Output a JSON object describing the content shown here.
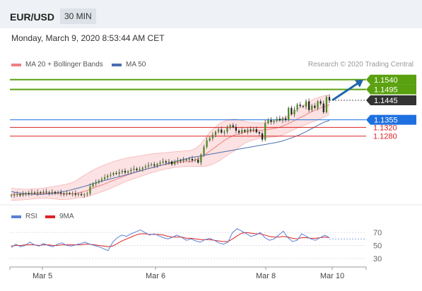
{
  "header": {
    "symbol": "EUR/USD",
    "timeframe": "30 MIN"
  },
  "datetime": "Monday, March 9, 2020 8:53:44 AM CET",
  "legend": {
    "ma_boll": {
      "label": "MA 20 + Bollinger Bands",
      "color": "#f08080"
    },
    "ma50": {
      "label": "MA 50",
      "color": "#4a6fb0"
    },
    "rsi": {
      "label": "RSI",
      "color": "#5b7fd4"
    },
    "ma9": {
      "label": "9MA",
      "color": "#dd2222"
    }
  },
  "credit": "Research © 2020 Trading Central",
  "chart_data": {
    "type": "candlestick",
    "symbol": "EUR/USD",
    "interval": "30 MIN",
    "ylim": [
      1.097,
      1.1575
    ],
    "x_ticks": [
      "Mar 5",
      "Mar 6",
      "Mar 8",
      "Mar 10"
    ],
    "levels": [
      {
        "label": "1.1540",
        "value": 1.154,
        "color": "#5aa10f",
        "kind": "resistance",
        "labelstyle": "box"
      },
      {
        "label": "1.1495",
        "value": 1.1495,
        "color": "#5aa10f",
        "kind": "resistance",
        "labelstyle": "box"
      },
      {
        "label": "1.1445",
        "value": 1.1445,
        "color": "#333333",
        "kind": "last",
        "labelstyle": "box"
      },
      {
        "label": "1.1355",
        "value": 1.1355,
        "color": "#1e70e0",
        "kind": "pivot",
        "labelstyle": "box"
      },
      {
        "label": "1.1320",
        "value": 1.132,
        "color": "#dd2222",
        "kind": "support",
        "labelstyle": "text"
      },
      {
        "label": "1.1280",
        "value": 1.128,
        "color": "#dd2222",
        "kind": "support",
        "labelstyle": "text"
      }
    ],
    "series": [
      {
        "name": "EUR/USD",
        "type": "candlestick",
        "close": [
          1.1008,
          1.101,
          1.1012,
          1.1007,
          1.1015,
          1.1018,
          1.1013,
          1.102,
          1.1016,
          1.1022,
          1.1019,
          1.1024,
          1.1021,
          1.1018,
          1.1023,
          1.1017,
          1.102,
          1.1015,
          1.1012,
          1.1018,
          1.1014,
          1.1016,
          1.101,
          1.1013,
          1.1008,
          1.1012,
          1.1015,
          1.1048,
          1.106,
          1.1068,
          1.1075,
          1.1082,
          1.109,
          1.1098,
          1.1102,
          1.111,
          1.1106,
          1.1114,
          1.112,
          1.1112,
          1.1118,
          1.1125,
          1.113,
          1.1123,
          1.1128,
          1.1135,
          1.114,
          1.1146,
          1.115,
          1.1144,
          1.1152,
          1.1158,
          1.1164,
          1.1158,
          1.1163,
          1.115,
          1.1162,
          1.1168,
          1.1165,
          1.1172,
          1.117,
          1.1175,
          1.1168,
          1.1172,
          1.1158,
          1.1195,
          1.123,
          1.126,
          1.127,
          1.1285,
          1.13,
          1.131,
          1.1296,
          1.13,
          1.1318,
          1.133,
          1.1322,
          1.1305,
          1.1296,
          1.1308,
          1.13,
          1.131,
          1.1305,
          1.1312,
          1.1298,
          1.1292,
          1.1264,
          1.134,
          1.1355,
          1.1345,
          1.135,
          1.136,
          1.1352,
          1.1362,
          1.1354,
          1.141,
          1.138,
          1.1402,
          1.1425,
          1.1418,
          1.1415,
          1.144,
          1.14,
          1.142,
          1.141,
          1.144,
          1.143,
          1.139,
          1.146,
          1.1445
        ]
      },
      {
        "name": "MA 20",
        "values": [
          1.1012,
          1.1011,
          1.1012,
          1.1013,
          1.1014,
          1.1015,
          1.1016,
          1.1017,
          1.1017,
          1.1016,
          1.1015,
          1.1014,
          1.1014,
          1.1015,
          1.102,
          1.1028,
          1.1036,
          1.1045,
          1.1053,
          1.1062,
          1.1071,
          1.108,
          1.1089,
          1.1098,
          1.1106,
          1.1113,
          1.112,
          1.1127,
          1.1133,
          1.1139,
          1.1144,
          1.115,
          1.1154,
          1.1158,
          1.1161,
          1.1162,
          1.1163,
          1.117,
          1.118,
          1.1195,
          1.1212,
          1.1228,
          1.1246,
          1.1262,
          1.1275,
          1.1286,
          1.1293,
          1.1298,
          1.1302,
          1.1304,
          1.1306,
          1.1309,
          1.1312,
          1.1316,
          1.1321,
          1.133,
          1.134,
          1.1352,
          1.1364,
          1.1375,
          1.1388,
          1.1398,
          1.1408,
          1.1416,
          1.1424
        ]
      },
      {
        "name": "MA 50",
        "values": [
          1.1025,
          1.102,
          1.1017,
          1.1015,
          1.1013,
          1.1012,
          1.1012,
          1.1013,
          1.1015,
          1.1018,
          1.1022,
          1.1026,
          1.1031,
          1.1037,
          1.1043,
          1.1049,
          1.1056,
          1.1063,
          1.1069,
          1.1075,
          1.1081,
          1.1087,
          1.1093,
          1.1099,
          1.1105,
          1.1112,
          1.1118,
          1.1124,
          1.113,
          1.1136,
          1.1142,
          1.1148,
          1.1154,
          1.116,
          1.1166,
          1.1172,
          1.1177,
          1.1182,
          1.1186,
          1.119,
          1.1194,
          1.1198,
          1.1202,
          1.1206,
          1.121,
          1.1214,
          1.1218,
          1.1222,
          1.1226,
          1.123,
          1.1234,
          1.1238,
          1.1242,
          1.1246,
          1.125,
          1.1255,
          1.1262,
          1.127,
          1.1278,
          1.1287,
          1.1298,
          1.131,
          1.1322,
          1.1334,
          1.1345,
          1.1352
        ]
      },
      {
        "name": "Bollinger upper",
        "values": [
          1.104,
          1.1038,
          1.1036,
          1.1035,
          1.1036,
          1.1038,
          1.104,
          1.1043,
          1.1046,
          1.105,
          1.1054,
          1.1058,
          1.1064,
          1.1074,
          1.109,
          1.1104,
          1.1118,
          1.113,
          1.114,
          1.115,
          1.1158,
          1.1166,
          1.1172,
          1.1178,
          1.1182,
          1.1186,
          1.119,
          1.1194,
          1.1197,
          1.12,
          1.1202,
          1.1204,
          1.1206,
          1.1208,
          1.121,
          1.1212,
          1.1214,
          1.1222,
          1.124,
          1.127,
          1.13,
          1.132,
          1.134,
          1.135,
          1.1356,
          1.1358,
          1.1354,
          1.1348,
          1.1344,
          1.1342,
          1.134,
          1.1342,
          1.1346,
          1.135,
          1.1356,
          1.1366,
          1.1378,
          1.1394,
          1.141,
          1.1426,
          1.144,
          1.1452,
          1.146,
          1.1466,
          1.147
        ]
      },
      {
        "name": "Bollinger lower",
        "values": [
          1.0984,
          1.0985,
          1.0986,
          1.0988,
          1.099,
          1.0992,
          1.0994,
          1.0994,
          1.0992,
          1.099,
          1.0988,
          1.0988,
          1.099,
          1.0994,
          1.0996,
          1.1,
          1.1006,
          1.1014,
          1.1022,
          1.103,
          1.104,
          1.105,
          1.106,
          1.107,
          1.1078,
          1.1086,
          1.1094,
          1.1102,
          1.111,
          1.1116,
          1.1122,
          1.1128,
          1.1132,
          1.1136,
          1.1138,
          1.114,
          1.114,
          1.114,
          1.114,
          1.114,
          1.1146,
          1.1156,
          1.1168,
          1.1184,
          1.12,
          1.1214,
          1.1232,
          1.1248,
          1.1258,
          1.1264,
          1.127,
          1.1272,
          1.1274,
          1.1276,
          1.128,
          1.129,
          1.13,
          1.1312,
          1.1322,
          1.133,
          1.134,
          1.1348,
          1.1358,
          1.1368,
          1.1378
        ]
      }
    ],
    "forecast": {
      "from": 1.1445,
      "to": 1.154,
      "color": "#2266aa"
    },
    "rsi": {
      "ylim": [
        20,
        80
      ],
      "ticks": [
        70,
        50,
        30
      ],
      "last": 60,
      "rsi_values": [
        47,
        52,
        48,
        50,
        55,
        51,
        49,
        53,
        50,
        48,
        52,
        54,
        50,
        49,
        51,
        53,
        55,
        52,
        50,
        48,
        45,
        42,
        55,
        62,
        66,
        64,
        68,
        71,
        74,
        70,
        66,
        68,
        65,
        62,
        60,
        63,
        66,
        62,
        58,
        60,
        57,
        55,
        59,
        61,
        58,
        54,
        52,
        55,
        70,
        76,
        72,
        68,
        64,
        66,
        70,
        62,
        58,
        60,
        66,
        72,
        62,
        56,
        58,
        68,
        64,
        60,
        58,
        62,
        66,
        62
      ],
      "ma9_values": [
        49,
        50,
        50,
        51,
        51,
        51,
        50,
        51,
        51,
        50,
        50,
        51,
        51,
        51,
        51,
        51,
        52,
        52,
        51,
        50,
        49,
        48,
        49,
        53,
        57,
        60,
        63,
        66,
        68,
        68,
        67,
        67,
        67,
        66,
        64,
        63,
        63,
        63,
        61,
        61,
        60,
        59,
        59,
        59,
        58,
        57,
        56,
        56,
        60,
        65,
        69,
        70,
        69,
        68,
        68,
        66,
        64,
        63,
        63,
        64,
        63,
        61,
        60,
        62,
        62,
        61,
        61,
        62,
        63,
        62
      ]
    }
  }
}
